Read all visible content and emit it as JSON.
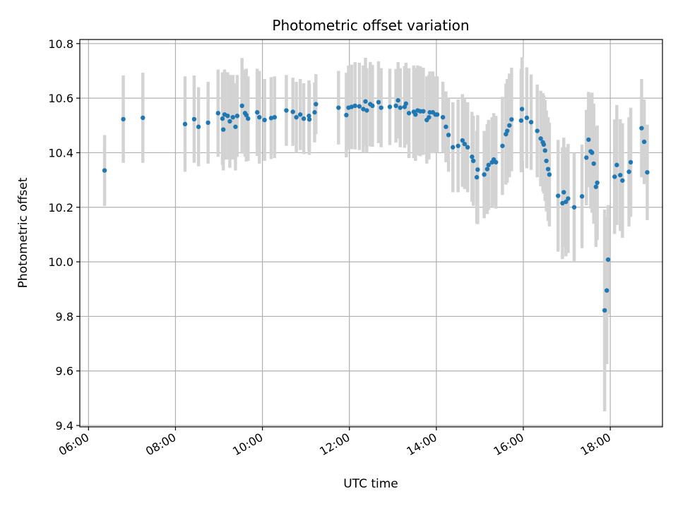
{
  "chart_data": {
    "type": "scatter",
    "title": "Photometric offset variation",
    "xlabel": "UTC time",
    "ylabel": "Photometric offset",
    "x_ticks": [
      "06:00",
      "08:00",
      "10:00",
      "12:00",
      "14:00",
      "16:00",
      "18:00"
    ],
    "y_ticks": [
      "9.4",
      "9.6",
      "9.8",
      "10.0",
      "10.2",
      "10.4",
      "10.6",
      "10.8"
    ],
    "x_unit": "hours (UTC)",
    "xlim": [
      5.8,
      19.2
    ],
    "ylim": [
      9.395,
      10.815
    ],
    "grid": true,
    "colors": {
      "point": "#1f77b4",
      "errorbar": "#d3d3d3",
      "grid": "#b0b0b0"
    },
    "points": [
      [
        6.37,
        10.335,
        0.13
      ],
      [
        6.8,
        10.523,
        0.16
      ],
      [
        7.25,
        10.528,
        0.165
      ],
      [
        8.22,
        10.505,
        0.175
      ],
      [
        8.43,
        10.523,
        0.16
      ],
      [
        8.53,
        10.495,
        0.145
      ],
      [
        8.75,
        10.51,
        0.15
      ],
      [
        8.98,
        10.545,
        0.16
      ],
      [
        9.08,
        10.525,
        0.17
      ],
      [
        9.1,
        10.485,
        0.15
      ],
      [
        9.13,
        10.54,
        0.165
      ],
      [
        9.2,
        10.535,
        0.16
      ],
      [
        9.25,
        10.515,
        0.17
      ],
      [
        9.32,
        10.53,
        0.155
      ],
      [
        9.38,
        10.495,
        0.16
      ],
      [
        9.42,
        10.535,
        0.15
      ],
      [
        9.53,
        10.572,
        0.175
      ],
      [
        9.6,
        10.545,
        0.16
      ],
      [
        9.63,
        10.538,
        0.17
      ],
      [
        9.67,
        10.525,
        0.155
      ],
      [
        9.88,
        10.548,
        0.16
      ],
      [
        9.93,
        10.53,
        0.17
      ],
      [
        10.05,
        10.52,
        0.15
      ],
      [
        10.2,
        10.527,
        0.15
      ],
      [
        10.28,
        10.53,
        0.15
      ],
      [
        10.55,
        10.555,
        0.13
      ],
      [
        10.7,
        10.55,
        0.125
      ],
      [
        10.78,
        10.53,
        0.13
      ],
      [
        10.87,
        10.54,
        0.13
      ],
      [
        10.95,
        10.525,
        0.13
      ],
      [
        11.07,
        10.535,
        0.13
      ],
      [
        11.08,
        10.522,
        0.13
      ],
      [
        11.2,
        10.548,
        0.11
      ],
      [
        11.23,
        10.578,
        0.11
      ],
      [
        11.75,
        10.565,
        0.135
      ],
      [
        11.93,
        10.538,
        0.155
      ],
      [
        11.98,
        10.565,
        0.155
      ],
      [
        12.05,
        10.568,
        0.155
      ],
      [
        12.13,
        10.572,
        0.16
      ],
      [
        12.23,
        10.57,
        0.16
      ],
      [
        12.32,
        10.56,
        0.16
      ],
      [
        12.37,
        10.588,
        0.16
      ],
      [
        12.4,
        10.555,
        0.155
      ],
      [
        12.48,
        10.578,
        0.155
      ],
      [
        12.53,
        10.572,
        0.15
      ],
      [
        12.67,
        10.585,
        0.15
      ],
      [
        12.73,
        10.565,
        0.145
      ],
      [
        12.93,
        10.568,
        0.14
      ],
      [
        13.07,
        10.572,
        0.135
      ],
      [
        13.12,
        10.592,
        0.14
      ],
      [
        13.17,
        10.565,
        0.145
      ],
      [
        13.27,
        10.568,
        0.15
      ],
      [
        13.3,
        10.58,
        0.15
      ],
      [
        13.37,
        10.545,
        0.165
      ],
      [
        13.48,
        10.55,
        0.17
      ],
      [
        13.52,
        10.54,
        0.17
      ],
      [
        13.57,
        10.555,
        0.165
      ],
      [
        13.63,
        10.552,
        0.165
      ],
      [
        13.7,
        10.552,
        0.16
      ],
      [
        13.78,
        10.52,
        0.16
      ],
      [
        13.83,
        10.53,
        0.155
      ],
      [
        13.85,
        10.548,
        0.15
      ],
      [
        13.92,
        10.548,
        0.15
      ],
      [
        13.98,
        10.54,
        0.14
      ],
      [
        14.02,
        10.54,
        0.14
      ],
      [
        14.15,
        10.53,
        0.13
      ],
      [
        14.22,
        10.495,
        0.13
      ],
      [
        14.28,
        10.465,
        0.135
      ],
      [
        14.38,
        10.42,
        0.165
      ],
      [
        14.5,
        10.425,
        0.17
      ],
      [
        14.6,
        10.445,
        0.17
      ],
      [
        14.65,
        10.432,
        0.165
      ],
      [
        14.72,
        10.42,
        0.165
      ],
      [
        14.82,
        10.385,
        0.165
      ],
      [
        14.85,
        10.37,
        0.165
      ],
      [
        14.93,
        10.31,
        0.17
      ],
      [
        14.95,
        10.338,
        0.2
      ],
      [
        15.1,
        10.32,
        0.16
      ],
      [
        15.17,
        10.34,
        0.165
      ],
      [
        15.2,
        10.355,
        0.165
      ],
      [
        15.28,
        10.365,
        0.165
      ],
      [
        15.32,
        10.375,
        0.17
      ],
      [
        15.37,
        10.365,
        0.17
      ],
      [
        15.52,
        10.425,
        0.18
      ],
      [
        15.6,
        10.468,
        0.185
      ],
      [
        15.63,
        10.48,
        0.19
      ],
      [
        15.68,
        10.5,
        0.19
      ],
      [
        15.73,
        10.522,
        0.19
      ],
      [
        15.95,
        10.518,
        0.19
      ],
      [
        15.97,
        10.56,
        0.19
      ],
      [
        16.08,
        10.528,
        0.185
      ],
      [
        16.18,
        10.512,
        0.175
      ],
      [
        16.32,
        10.48,
        0.17
      ],
      [
        16.4,
        10.452,
        0.175
      ],
      [
        16.45,
        10.438,
        0.18
      ],
      [
        16.47,
        10.43,
        0.18
      ],
      [
        16.5,
        10.408,
        0.185
      ],
      [
        16.53,
        10.37,
        0.185
      ],
      [
        16.57,
        10.34,
        0.19
      ],
      [
        16.6,
        10.32,
        0.19
      ],
      [
        16.8,
        10.242,
        0.205
      ],
      [
        16.9,
        10.215,
        0.205
      ],
      [
        16.93,
        10.255,
        0.2
      ],
      [
        16.98,
        10.22,
        0.2
      ],
      [
        17.03,
        10.232,
        0.2
      ],
      [
        17.17,
        10.2,
        0.2
      ],
      [
        17.35,
        10.24,
        0.19
      ],
      [
        17.45,
        10.382,
        0.175
      ],
      [
        17.5,
        10.448,
        0.175
      ],
      [
        17.55,
        10.405,
        0.21
      ],
      [
        17.58,
        10.4,
        0.22
      ],
      [
        17.62,
        10.36,
        0.22
      ],
      [
        17.67,
        10.275,
        0.22
      ],
      [
        17.7,
        10.29,
        0.21
      ],
      [
        17.87,
        9.822,
        0.37
      ],
      [
        17.92,
        9.895,
        0.27
      ],
      [
        17.95,
        10.008,
        0.2
      ],
      [
        18.1,
        10.312,
        0.21
      ],
      [
        18.15,
        10.355,
        0.22
      ],
      [
        18.23,
        10.318,
        0.205
      ],
      [
        18.28,
        10.298,
        0.21
      ],
      [
        18.43,
        10.33,
        0.2
      ],
      [
        18.47,
        10.365,
        0.2
      ],
      [
        18.72,
        10.49,
        0.18
      ],
      [
        18.78,
        10.44,
        0.155
      ],
      [
        18.85,
        10.328,
        0.175
      ]
    ]
  }
}
